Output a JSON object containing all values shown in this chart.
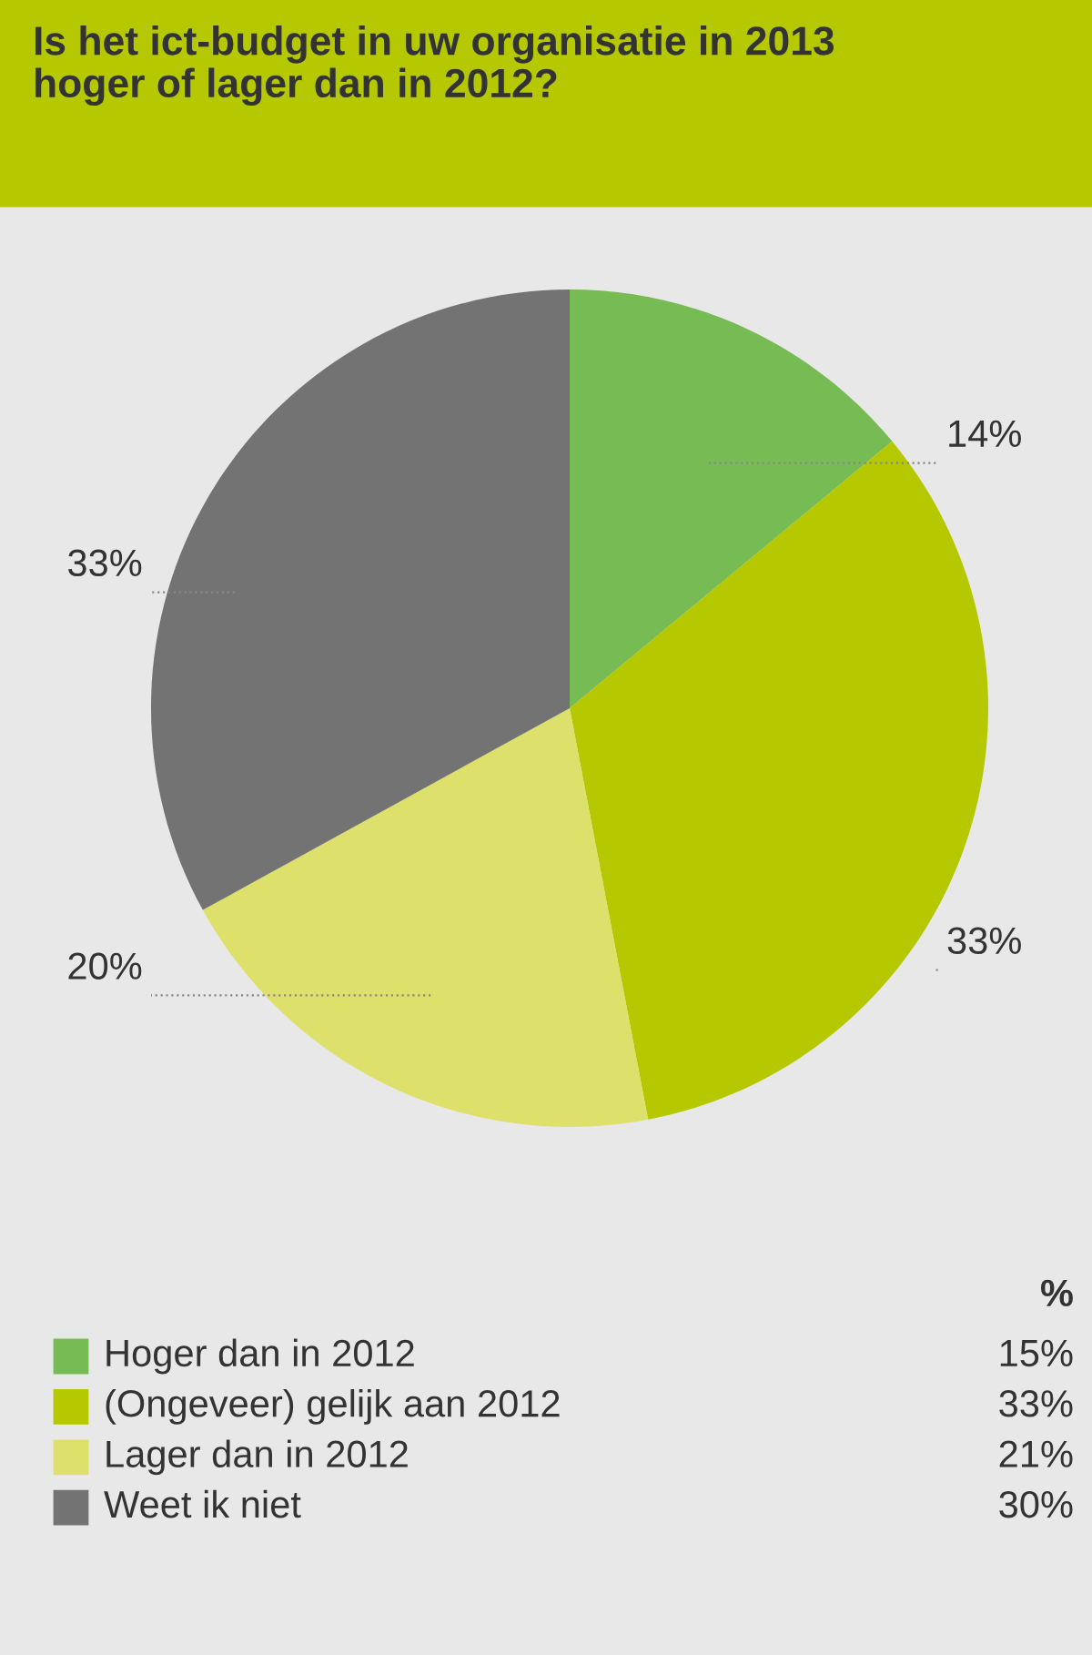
{
  "chart_data": {
    "type": "pie",
    "title": "Is het ict-budget in uw organisatie in 2013\nhoger of lager dan in 2012?",
    "categories": [
      "Hoger dan in 2012",
      "(Ongeveer) gelijk aan 2012",
      "Lager dan in 2012",
      "Weet ik niet"
    ],
    "values": [
      14,
      33,
      20,
      33
    ],
    "value_labels": [
      "14%",
      "33%",
      "20%",
      "33%"
    ],
    "colors": [
      "#77bb55",
      "#b5c800",
      "#dde06a",
      "#737373"
    ],
    "legend": "bottom",
    "annotations": [
      "%",
      "15%",
      "33%",
      "21%",
      "30%"
    ]
  }
}
